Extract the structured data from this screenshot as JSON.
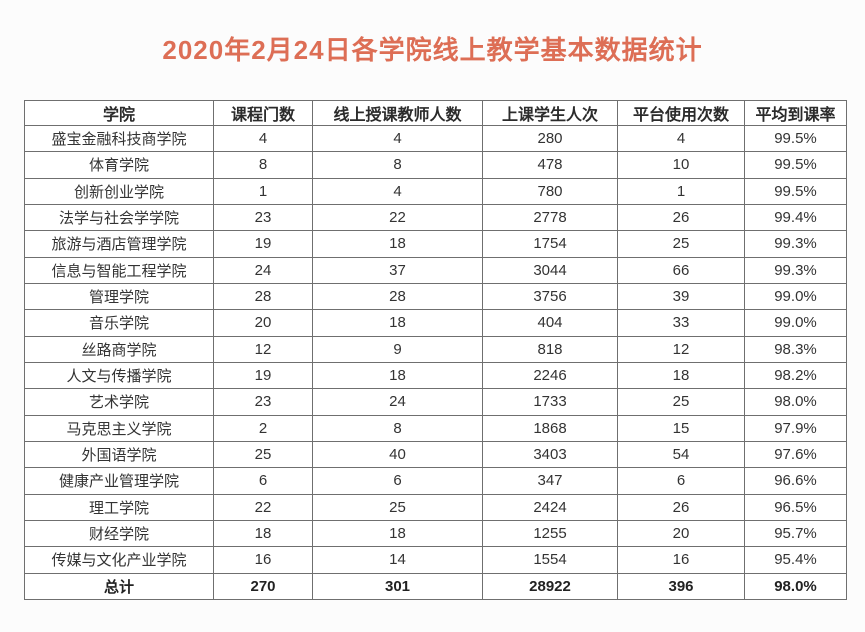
{
  "title": {
    "text": "2020年2月24日各学院线上教学基本数据统计",
    "color": "#dd6e55"
  },
  "table": {
    "headers": [
      "学院",
      "课程门数",
      "线上授课教师人数",
      "上课学生人次",
      "平台使用次数",
      "平均到课率"
    ],
    "rows": [
      [
        "盛宝金融科技商学院",
        "4",
        "4",
        "280",
        "4",
        "99.5%"
      ],
      [
        "体育学院",
        "8",
        "8",
        "478",
        "10",
        "99.5%"
      ],
      [
        "创新创业学院",
        "1",
        "4",
        "780",
        "1",
        "99.5%"
      ],
      [
        "法学与社会学学院",
        "23",
        "22",
        "2778",
        "26",
        "99.4%"
      ],
      [
        "旅游与酒店管理学院",
        "19",
        "18",
        "1754",
        "25",
        "99.3%"
      ],
      [
        "信息与智能工程学院",
        "24",
        "37",
        "3044",
        "66",
        "99.3%"
      ],
      [
        "管理学院",
        "28",
        "28",
        "3756",
        "39",
        "99.0%"
      ],
      [
        "音乐学院",
        "20",
        "18",
        "404",
        "33",
        "99.0%"
      ],
      [
        "丝路商学院",
        "12",
        "9",
        "818",
        "12",
        "98.3%"
      ],
      [
        "人文与传播学院",
        "19",
        "18",
        "2246",
        "18",
        "98.2%"
      ],
      [
        "艺术学院",
        "23",
        "24",
        "1733",
        "25",
        "98.0%"
      ],
      [
        "马克思主义学院",
        "2",
        "8",
        "1868",
        "15",
        "97.9%"
      ],
      [
        "外国语学院",
        "25",
        "40",
        "3403",
        "54",
        "97.6%"
      ],
      [
        "健康产业管理学院",
        "6",
        "6",
        "347",
        "6",
        "96.6%"
      ],
      [
        "理工学院",
        "22",
        "25",
        "2424",
        "26",
        "96.5%"
      ],
      [
        "财经学院",
        "18",
        "18",
        "1255",
        "20",
        "95.7%"
      ],
      [
        "传媒与文化产业学院",
        "16",
        "14",
        "1554",
        "16",
        "95.4%"
      ]
    ],
    "total_row": [
      "总计",
      "270",
      "301",
      "28922",
      "396",
      "98.0%"
    ]
  }
}
